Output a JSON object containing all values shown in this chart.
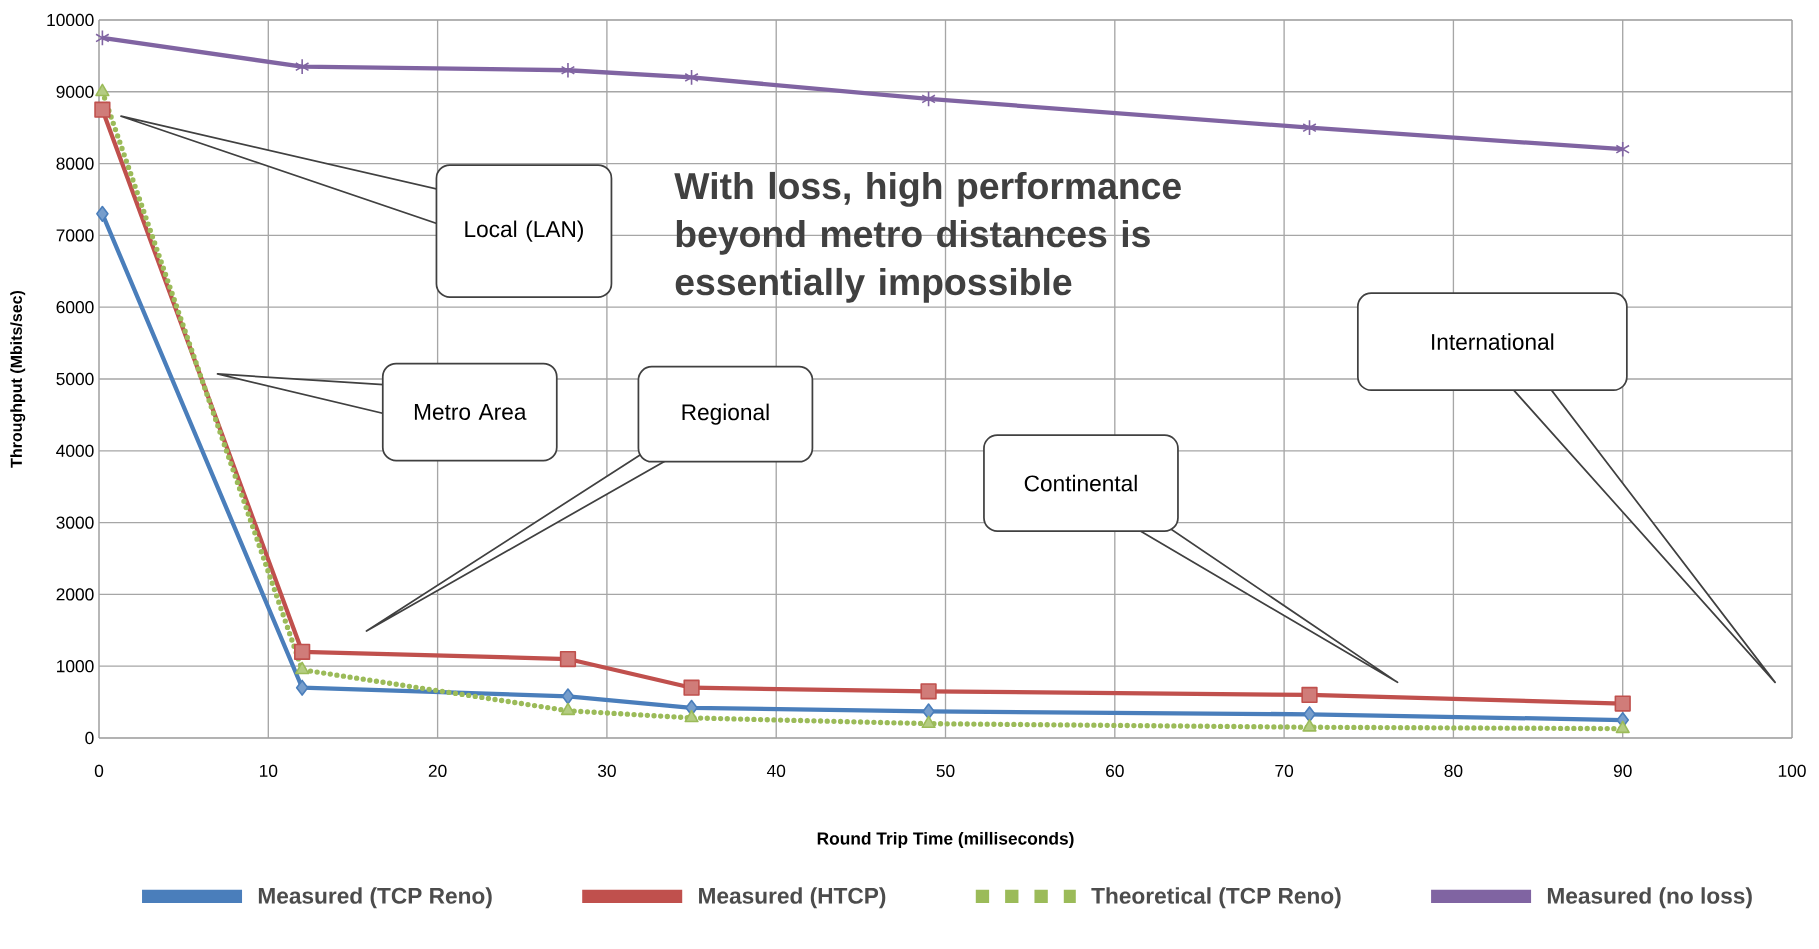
{
  "chart_data": {
    "type": "line",
    "xlabel": "Round Trip Time (milliseconds)",
    "ylabel": "Throughput (Mbits/sec)",
    "x": [
      0.2,
      12,
      27.7,
      35,
      49,
      71.5,
      90
    ],
    "xlim": [
      0,
      100
    ],
    "xticks": [
      0,
      10,
      20,
      30,
      40,
      50,
      60,
      70,
      80,
      90,
      100
    ],
    "ylim": [
      0,
      10000
    ],
    "yticks": [
      0,
      1000,
      2000,
      3000,
      4000,
      5000,
      6000,
      7000,
      8000,
      9000,
      10000
    ],
    "grid": true,
    "legend": "bottom",
    "series": [
      {
        "name": "Measured (TCP Reno)",
        "color": "#4a7ebb",
        "marker": "diamond",
        "line_style": "solid",
        "values": [
          7300,
          700,
          580,
          420,
          370,
          330,
          250
        ]
      },
      {
        "name": "Measured (HTCP)",
        "color": "#c0504d",
        "marker": "square",
        "line_style": "solid",
        "values": [
          8750,
          1200,
          1100,
          700,
          650,
          600,
          480
        ]
      },
      {
        "name": "Theoretical (TCP Reno)",
        "color": "#9bbb59",
        "marker": "triangle",
        "line_style": "dotted",
        "values": [
          9000,
          950,
          380,
          280,
          200,
          150,
          130
        ]
      },
      {
        "name": "Measured (no loss)",
        "color": "#8064a2",
        "marker": "cross",
        "line_style": "solid",
        "values": [
          9750,
          9350,
          9300,
          9200,
          8900,
          8500,
          8200
        ]
      }
    ],
    "annotations": [
      "Local (LAN)",
      "Metro Area",
      "Regional",
      "Continental",
      "International",
      "With loss, high performance beyond metro distances is essentially impossible"
    ]
  }
}
